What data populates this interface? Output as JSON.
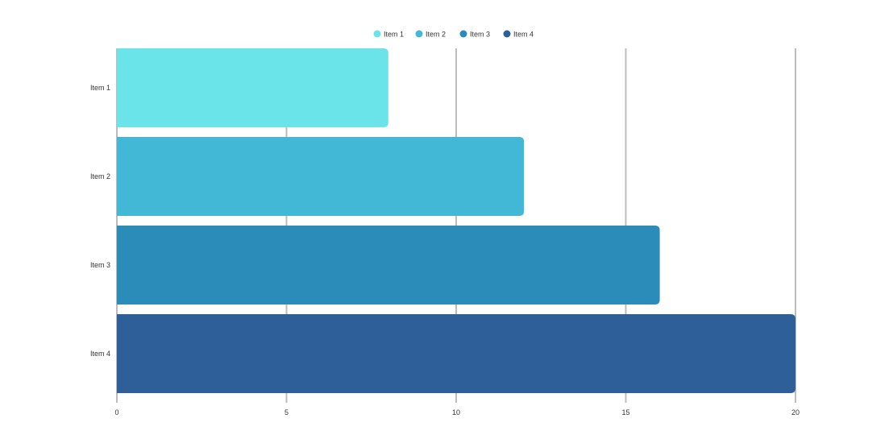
{
  "chart_data": {
    "type": "bar",
    "orientation": "horizontal",
    "categories": [
      "Item 1",
      "Item 2",
      "Item 3",
      "Item 4"
    ],
    "values": [
      8,
      12,
      16,
      20
    ],
    "xlim": [
      0,
      20
    ],
    "x_ticks": [
      "0",
      "5",
      "10",
      "15",
      "20"
    ],
    "grid": true,
    "legend_position": "top-center",
    "legend": [
      "Item 1",
      "Item 2",
      "Item 3",
      "Item 4"
    ],
    "colors": [
      "#6ae4e8",
      "#42b7d6",
      "#2c8cb9",
      "#2e5f99"
    ],
    "grid_color": "#bdbdbd"
  }
}
